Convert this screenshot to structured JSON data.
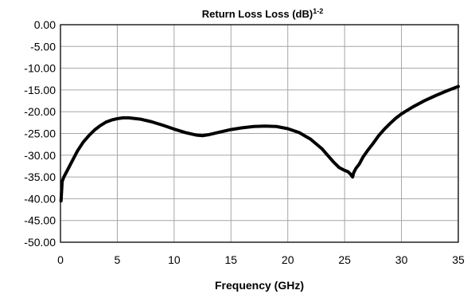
{
  "chart_data": {
    "type": "line",
    "title": "Return Loss Loss (dB)",
    "title_superscript": "1-2",
    "xlabel": "Frequency (GHz)",
    "ylabel": "",
    "xlim": [
      0,
      35
    ],
    "ylim": [
      -50,
      0
    ],
    "x_ticks": [
      "0",
      "5",
      "10",
      "15",
      "20",
      "25",
      "30",
      "35"
    ],
    "y_ticks": [
      "0.00",
      "-5.00",
      "-10.00",
      "-15.00",
      "-20.00",
      "-25.00",
      "-30.00",
      "-35.00",
      "-40.00",
      "-45.00",
      "-50.00"
    ],
    "grid": true,
    "line_color": "#000000",
    "grid_color": "#a6a6a6",
    "series": [
      {
        "x": [
          0.05,
          0.15,
          0.3,
          0.5,
          1,
          1.5,
          2,
          2.5,
          3,
          3.5,
          4,
          4.5,
          5,
          5.5,
          6,
          7,
          8,
          9,
          10,
          11,
          12,
          12.5,
          13,
          14,
          15,
          16,
          17,
          18,
          19,
          20,
          21,
          22,
          23,
          23.5,
          24,
          24.5,
          25,
          25.3,
          25.5,
          25.7,
          25.8,
          26,
          26.3,
          26.6,
          27,
          27.5,
          28,
          28.5,
          29,
          29.5,
          30,
          31,
          32,
          33,
          34,
          35
        ],
        "y": [
          -40.5,
          -36.0,
          -35.0,
          -34.0,
          -31.5,
          -29.0,
          -27.0,
          -25.5,
          -24.2,
          -23.2,
          -22.4,
          -21.9,
          -21.6,
          -21.4,
          -21.4,
          -21.7,
          -22.3,
          -23.1,
          -24.0,
          -24.8,
          -25.4,
          -25.5,
          -25.3,
          -24.7,
          -24.1,
          -23.7,
          -23.4,
          -23.3,
          -23.4,
          -23.9,
          -24.8,
          -26.3,
          -28.5,
          -30.0,
          -31.5,
          -32.8,
          -33.5,
          -33.8,
          -34.3,
          -35.0,
          -34.0,
          -33.0,
          -32.0,
          -30.5,
          -29.0,
          -27.3,
          -25.5,
          -24.0,
          -22.7,
          -21.5,
          -20.5,
          -18.9,
          -17.5,
          -16.3,
          -15.2,
          -14.2
        ]
      }
    ]
  }
}
